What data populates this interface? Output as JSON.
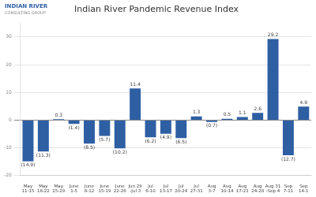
{
  "chart_data": {
    "type": "bar",
    "title": "Indian River Pandemic Revenue Index",
    "annotations": [
      "INDIAN RIVER",
      "CONSULTING GROUP"
    ],
    "categories": [
      "May\n11-15",
      "May\n18-22",
      "May\n25-29",
      "June\n1-5",
      "June\n8-12",
      "June\n15-19",
      "June\n22-26",
      "Jun 29\n-Jul 3",
      "Jul\n6-10",
      "Jul\n13-17",
      "Jul\n20-24",
      "Jul\n27-31",
      "Aug\n3-7",
      "Aug\n10-14",
      "Aug\n17-21",
      "Aug\n24-28",
      "Aug 31\n-Sep 4",
      "Sep\n7-11",
      "Sep\n14-1"
    ],
    "values": [
      -14.9,
      -11.3,
      0.3,
      -1.4,
      -8.5,
      -5.7,
      -10.2,
      11.4,
      -6.2,
      -4.9,
      -6.5,
      1.3,
      -0.7,
      0.5,
      1.1,
      2.6,
      29.2,
      -12.7,
      4.9
    ],
    "value_labels": [
      "(14.9)",
      "(11.3)",
      "0.3",
      "(1.4)",
      "(8.5)",
      "(5.7)",
      "(10.2)",
      "11.4",
      "(6.2)",
      "(4.9)",
      "(6.5)",
      "1.3",
      "(0.7)",
      "0.5",
      "1.1",
      "2.6",
      "29.2",
      "(12.7)",
      "4.9"
    ],
    "color": "#2E5FA3",
    "ylim": [
      -20,
      35
    ],
    "yticks": [
      -20,
      -10,
      0,
      10,
      20,
      30
    ],
    "grid": true,
    "data_labels": true
  }
}
